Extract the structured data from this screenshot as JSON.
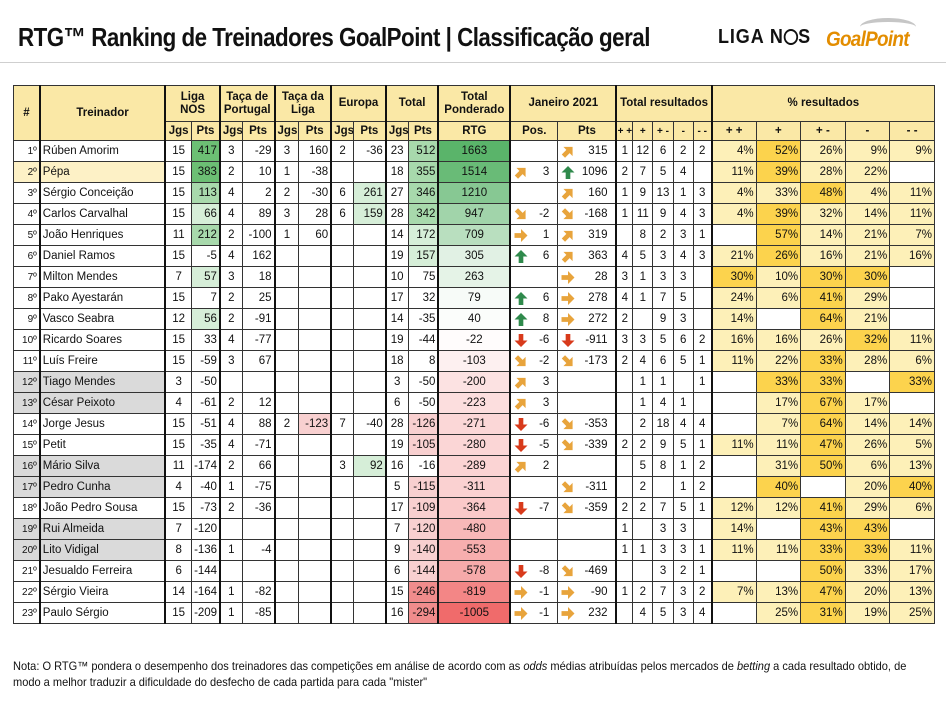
{
  "header": {
    "title": "RTG™ Ranking de Treinadores GoalPoint | Classificação geral"
  },
  "logos": {
    "liga": "LIGA N",
    "liga_icon": "lion-circle-icon",
    "liga_tail": "S",
    "goalpoint": "GoalPoint"
  },
  "columns": {
    "num": "#",
    "treinador": "Treinador",
    "liga": "Liga NOS",
    "taca_portugal": "Taça de Portugal",
    "taca_liga": "Taça da Liga",
    "europa": "Europa",
    "total": "Total",
    "total_ponderado": "Total Ponderado",
    "janeiro": "Janeiro 2021",
    "total_resultados": "Total resultados",
    "pct_resultados": "% resultados",
    "jgs": "Jgs",
    "pts": "Pts",
    "rtg": "RTG",
    "pos": "Pos.",
    "res_labels": [
      "+ +",
      "+",
      "+ -",
      "-",
      "- -"
    ]
  },
  "colors": {
    "header_bg": "#fae8a6",
    "green": "#5ab46a",
    "red": "#f06b6b",
    "yellow": "#fce27a",
    "up_arrow": "#2f8a4c",
    "down_arrow": "#d83a1b",
    "side_arrow": "#e8a43c"
  },
  "rows": [
    {
      "pos": "1º",
      "name": "Rúben Amorim",
      "liga": [
        "15",
        "417"
      ],
      "tp": [
        "3",
        "-29"
      ],
      "tl": [
        "3",
        "160"
      ],
      "eu": [
        "2",
        "-36"
      ],
      "tot": [
        "23",
        "512"
      ],
      "rtg": 1663,
      "mv": "",
      "mvdir": "",
      "jan": "315",
      "jdir": "ne",
      "res": [
        "1",
        "12",
        "6",
        "2",
        "2"
      ],
      "pct": [
        "4%",
        "52%",
        "26%",
        "9%",
        "9%"
      ],
      "hl": ""
    },
    {
      "pos": "2º",
      "name": "Pépa",
      "liga": [
        "15",
        "383"
      ],
      "tp": [
        "2",
        "10"
      ],
      "tl": [
        "1",
        "-38"
      ],
      "eu": [
        "",
        ""
      ],
      "tot": [
        "18",
        "355"
      ],
      "rtg": 1514,
      "mv": "3",
      "mvdir": "ne",
      "jan": "1096",
      "jdir": "up",
      "res": [
        "2",
        "7",
        "5",
        "4",
        ""
      ],
      "pct": [
        "11%",
        "39%",
        "28%",
        "22%",
        ""
      ],
      "hl": "yel"
    },
    {
      "pos": "3º",
      "name": "Sérgio Conceição",
      "liga": [
        "15",
        "113"
      ],
      "tp": [
        "4",
        "2"
      ],
      "tl": [
        "2",
        "-30"
      ],
      "eu": [
        "6",
        "261"
      ],
      "tot": [
        "27",
        "346"
      ],
      "rtg": 1210,
      "mv": "",
      "mvdir": "",
      "jan": "160",
      "jdir": "ne",
      "res": [
        "1",
        "9",
        "13",
        "1",
        "3"
      ],
      "pct": [
        "4%",
        "33%",
        "48%",
        "4%",
        "11%"
      ],
      "hl": ""
    },
    {
      "pos": "4º",
      "name": "Carlos Carvalhal",
      "liga": [
        "15",
        "66"
      ],
      "tp": [
        "4",
        "89"
      ],
      "tl": [
        "3",
        "28"
      ],
      "eu": [
        "6",
        "159"
      ],
      "tot": [
        "28",
        "342"
      ],
      "rtg": 947,
      "mv": "-2",
      "mvdir": "se",
      "jan": "-168",
      "jdir": "se",
      "res": [
        "1",
        "11",
        "9",
        "4",
        "3"
      ],
      "pct": [
        "4%",
        "39%",
        "32%",
        "14%",
        "11%"
      ],
      "hl": ""
    },
    {
      "pos": "5º",
      "name": "João Henriques",
      "liga": [
        "11",
        "212"
      ],
      "tp": [
        "2",
        "-100"
      ],
      "tl": [
        "1",
        "60"
      ],
      "eu": [
        "",
        ""
      ],
      "tot": [
        "14",
        "172"
      ],
      "rtg": 709,
      "mv": "1",
      "mvdir": "right",
      "jan": "319",
      "jdir": "ne",
      "res": [
        "",
        "8",
        "2",
        "3",
        "1"
      ],
      "pct": [
        "",
        "57%",
        "14%",
        "21%",
        "7%"
      ],
      "hl": ""
    },
    {
      "pos": "6º",
      "name": "Daniel Ramos",
      "liga": [
        "15",
        "-5"
      ],
      "tp": [
        "4",
        "162"
      ],
      "tl": [
        "",
        ""
      ],
      "eu": [
        "",
        ""
      ],
      "tot": [
        "19",
        "157"
      ],
      "rtg": 305,
      "mv": "6",
      "mvdir": "up",
      "jan": "363",
      "jdir": "ne",
      "res": [
        "4",
        "5",
        "3",
        "4",
        "3"
      ],
      "pct": [
        "21%",
        "26%",
        "16%",
        "21%",
        "16%"
      ],
      "hl": ""
    },
    {
      "pos": "7º",
      "name": "Milton Mendes",
      "liga": [
        "7",
        "57"
      ],
      "tp": [
        "3",
        "18"
      ],
      "tl": [
        "",
        ""
      ],
      "eu": [
        "",
        ""
      ],
      "tot": [
        "10",
        "75"
      ],
      "rtg": 263,
      "mv": "",
      "mvdir": "",
      "jan": "28",
      "jdir": "right",
      "res": [
        "3",
        "1",
        "3",
        "3",
        ""
      ],
      "pct": [
        "30%",
        "10%",
        "30%",
        "30%",
        ""
      ],
      "hl": ""
    },
    {
      "pos": "8º",
      "name": "Pako Ayestarán",
      "liga": [
        "15",
        "7"
      ],
      "tp": [
        "2",
        "25"
      ],
      "tl": [
        "",
        ""
      ],
      "eu": [
        "",
        ""
      ],
      "tot": [
        "17",
        "32"
      ],
      "rtg": 79,
      "mv": "6",
      "mvdir": "up",
      "jan": "278",
      "jdir": "right",
      "res": [
        "4",
        "1",
        "7",
        "5",
        ""
      ],
      "pct": [
        "24%",
        "6%",
        "41%",
        "29%",
        ""
      ],
      "hl": ""
    },
    {
      "pos": "9º",
      "name": "Vasco Seabra",
      "liga": [
        "12",
        "56"
      ],
      "tp": [
        "2",
        "-91"
      ],
      "tl": [
        "",
        ""
      ],
      "eu": [
        "",
        ""
      ],
      "tot": [
        "14",
        "-35"
      ],
      "rtg": 40,
      "mv": "8",
      "mvdir": "up",
      "jan": "272",
      "jdir": "right",
      "res": [
        "2",
        "",
        "9",
        "3",
        ""
      ],
      "pct": [
        "14%",
        "",
        "64%",
        "21%",
        ""
      ],
      "hl": ""
    },
    {
      "pos": "10º",
      "name": "Ricardo Soares",
      "liga": [
        "15",
        "33"
      ],
      "tp": [
        "4",
        "-77"
      ],
      "tl": [
        "",
        ""
      ],
      "eu": [
        "",
        ""
      ],
      "tot": [
        "19",
        "-44"
      ],
      "rtg": -22,
      "mv": "-6",
      "mvdir": "down",
      "jan": "-911",
      "jdir": "down",
      "res": [
        "3",
        "3",
        "5",
        "6",
        "2"
      ],
      "pct": [
        "16%",
        "16%",
        "26%",
        "32%",
        "11%"
      ],
      "hl": ""
    },
    {
      "pos": "11º",
      "name": "Luís Freire",
      "liga": [
        "15",
        "-59"
      ],
      "tp": [
        "3",
        "67"
      ],
      "tl": [
        "",
        ""
      ],
      "eu": [
        "",
        ""
      ],
      "tot": [
        "18",
        "8"
      ],
      "rtg": -103,
      "mv": "-2",
      "mvdir": "se",
      "jan": "-173",
      "jdir": "se",
      "res": [
        "2",
        "4",
        "6",
        "5",
        "1"
      ],
      "pct": [
        "11%",
        "22%",
        "33%",
        "28%",
        "6%"
      ],
      "hl": ""
    },
    {
      "pos": "12º",
      "name": "Tiago Mendes",
      "liga": [
        "3",
        "-50"
      ],
      "tp": [
        "",
        ""
      ],
      "tl": [
        "",
        ""
      ],
      "eu": [
        "",
        ""
      ],
      "tot": [
        "3",
        "-50"
      ],
      "rtg": -200,
      "mv": "3",
      "mvdir": "ne",
      "jan": "",
      "jdir": "",
      "res": [
        "",
        "1",
        "1",
        "",
        "1"
      ],
      "pct": [
        "",
        "33%",
        "33%",
        "",
        "33%"
      ],
      "hl": "gry"
    },
    {
      "pos": "13º",
      "name": "César Peixoto",
      "liga": [
        "4",
        "-61"
      ],
      "tp": [
        "2",
        "12"
      ],
      "tl": [
        "",
        ""
      ],
      "eu": [
        "",
        ""
      ],
      "tot": [
        "6",
        "-50"
      ],
      "rtg": -223,
      "mv": "3",
      "mvdir": "ne",
      "jan": "",
      "jdir": "",
      "res": [
        "",
        "1",
        "4",
        "1",
        ""
      ],
      "pct": [
        "",
        "17%",
        "67%",
        "17%",
        ""
      ],
      "hl": "gry"
    },
    {
      "pos": "14º",
      "name": "Jorge Jesus",
      "liga": [
        "15",
        "-51"
      ],
      "tp": [
        "4",
        "88"
      ],
      "tl": [
        "2",
        "-123"
      ],
      "eu": [
        "7",
        "-40"
      ],
      "tot": [
        "28",
        "-126"
      ],
      "rtg": -271,
      "mv": "-6",
      "mvdir": "down",
      "jan": "-353",
      "jdir": "se",
      "res": [
        "",
        "2",
        "18",
        "4",
        "4"
      ],
      "pct": [
        "",
        "7%",
        "64%",
        "14%",
        "14%"
      ],
      "hl": ""
    },
    {
      "pos": "15º",
      "name": "Petit",
      "liga": [
        "15",
        "-35"
      ],
      "tp": [
        "4",
        "-71"
      ],
      "tl": [
        "",
        ""
      ],
      "eu": [
        "",
        ""
      ],
      "tot": [
        "19",
        "-105"
      ],
      "rtg": -280,
      "mv": "-5",
      "mvdir": "down",
      "jan": "-339",
      "jdir": "se",
      "res": [
        "2",
        "2",
        "9",
        "5",
        "1"
      ],
      "pct": [
        "11%",
        "11%",
        "47%",
        "26%",
        "5%"
      ],
      "hl": ""
    },
    {
      "pos": "16º",
      "name": "Mário Silva",
      "liga": [
        "11",
        "-174"
      ],
      "tp": [
        "2",
        "66"
      ],
      "tl": [
        "",
        ""
      ],
      "eu": [
        "3",
        "92"
      ],
      "tot": [
        "16",
        "-16"
      ],
      "rtg": -289,
      "mv": "2",
      "mvdir": "ne",
      "jan": "",
      "jdir": "",
      "res": [
        "",
        "5",
        "8",
        "1",
        "2"
      ],
      "pct": [
        "",
        "31%",
        "50%",
        "6%",
        "13%"
      ],
      "hl": "gry"
    },
    {
      "pos": "17º",
      "name": "Pedro Cunha",
      "liga": [
        "4",
        "-40"
      ],
      "tp": [
        "1",
        "-75"
      ],
      "tl": [
        "",
        ""
      ],
      "eu": [
        "",
        ""
      ],
      "tot": [
        "5",
        "-115"
      ],
      "rtg": -311,
      "mv": "",
      "mvdir": "",
      "jan": "-311",
      "jdir": "se",
      "res": [
        "",
        "2",
        "",
        "1",
        "2"
      ],
      "pct": [
        "",
        "40%",
        "",
        "20%",
        "40%"
      ],
      "hl": "gry"
    },
    {
      "pos": "18º",
      "name": "João Pedro Sousa",
      "liga": [
        "15",
        "-73"
      ],
      "tp": [
        "2",
        "-36"
      ],
      "tl": [
        "",
        ""
      ],
      "eu": [
        "",
        ""
      ],
      "tot": [
        "17",
        "-109"
      ],
      "rtg": -364,
      "mv": "-7",
      "mvdir": "down",
      "jan": "-359",
      "jdir": "se",
      "res": [
        "2",
        "2",
        "7",
        "5",
        "1"
      ],
      "pct": [
        "12%",
        "12%",
        "41%",
        "29%",
        "6%"
      ],
      "hl": ""
    },
    {
      "pos": "19º",
      "name": "Rui Almeida",
      "liga": [
        "7",
        "-120"
      ],
      "tp": [
        "",
        ""
      ],
      "tl": [
        "",
        ""
      ],
      "eu": [
        "",
        ""
      ],
      "tot": [
        "7",
        "-120"
      ],
      "rtg": -480,
      "mv": "",
      "mvdir": "",
      "jan": "",
      "jdir": "",
      "res": [
        "1",
        "",
        "3",
        "3",
        ""
      ],
      "pct": [
        "14%",
        "",
        "43%",
        "43%",
        ""
      ],
      "hl": "gry"
    },
    {
      "pos": "20º",
      "name": "Lito Vidigal",
      "liga": [
        "8",
        "-136"
      ],
      "tp": [
        "1",
        "-4"
      ],
      "tl": [
        "",
        ""
      ],
      "eu": [
        "",
        ""
      ],
      "tot": [
        "9",
        "-140"
      ],
      "rtg": -553,
      "mv": "",
      "mvdir": "",
      "jan": "",
      "jdir": "",
      "res": [
        "1",
        "1",
        "3",
        "3",
        "1"
      ],
      "pct": [
        "11%",
        "11%",
        "33%",
        "33%",
        "11%"
      ],
      "hl": "gry"
    },
    {
      "pos": "21º",
      "name": "Jesualdo Ferreira",
      "liga": [
        "6",
        "-144"
      ],
      "tp": [
        "",
        ""
      ],
      "tl": [
        "",
        ""
      ],
      "eu": [
        "",
        ""
      ],
      "tot": [
        "6",
        "-144"
      ],
      "rtg": -578,
      "mv": "-8",
      "mvdir": "down",
      "jan": "-469",
      "jdir": "se",
      "res": [
        "",
        "",
        "3",
        "2",
        "1"
      ],
      "pct": [
        "",
        "",
        "50%",
        "33%",
        "17%"
      ],
      "hl": ""
    },
    {
      "pos": "22º",
      "name": "Sérgio Vieira",
      "liga": [
        "14",
        "-164"
      ],
      "tp": [
        "1",
        "-82"
      ],
      "tl": [
        "",
        ""
      ],
      "eu": [
        "",
        ""
      ],
      "tot": [
        "15",
        "-246"
      ],
      "rtg": -819,
      "mv": "-1",
      "mvdir": "right",
      "jan": "-90",
      "jdir": "right",
      "res": [
        "1",
        "2",
        "7",
        "3",
        "2"
      ],
      "pct": [
        "7%",
        "13%",
        "47%",
        "20%",
        "13%"
      ],
      "hl": ""
    },
    {
      "pos": "23º",
      "name": "Paulo Sérgio",
      "liga": [
        "15",
        "-209"
      ],
      "tp": [
        "1",
        "-85"
      ],
      "tl": [
        "",
        ""
      ],
      "eu": [
        "",
        ""
      ],
      "tot": [
        "16",
        "-294"
      ],
      "rtg": -1005,
      "mv": "-1",
      "mvdir": "right",
      "jan": "232",
      "jdir": "right",
      "res": [
        "",
        "4",
        "5",
        "3",
        "4"
      ],
      "pct": [
        "",
        "25%",
        "31%",
        "19%",
        "25%"
      ],
      "hl": ""
    }
  ],
  "note": {
    "p1": "Nota: O RTG™ pondera o desempenho dos treinadores das competições em análise de acordo com as ",
    "i1": "odds",
    "p2": " médias atribuídas pelos mercados de ",
    "i2": "betting",
    "p3": " a cada resultado obtido, de modo a melhor traduzir a dificuldade do desfecho de cada partida para cada \"mister\""
  }
}
